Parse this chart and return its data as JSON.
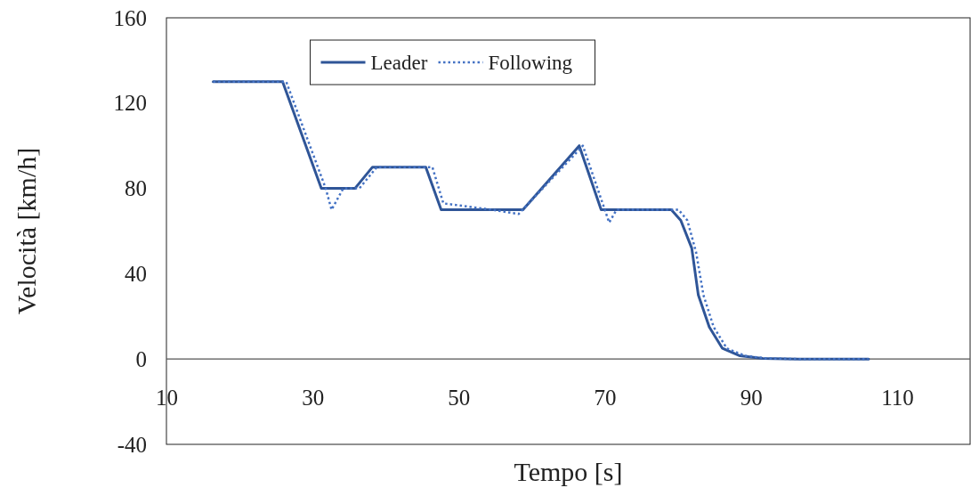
{
  "chart_data": {
    "type": "line",
    "xlabel": "Tempo [s]",
    "ylabel": "Velocità [km/h]",
    "xlim": [
      10,
      120
    ],
    "xticks": [
      10,
      30,
      50,
      70,
      90,
      110
    ],
    "ylim": [
      -40,
      160
    ],
    "yticks": [
      -40,
      0,
      40,
      80,
      120,
      160
    ],
    "grid": false,
    "legend": "top",
    "marker": "none",
    "series": [
      {
        "name": "Leader",
        "color": "#2f5597",
        "line_style": "solid",
        "x": [
          16.4,
          25.9,
          31.2,
          35.8,
          38.2,
          45.5,
          47.6,
          58.8,
          66.5,
          69.5,
          79.1,
          80.4,
          81.9,
          82.8,
          84.3,
          86.1,
          88.5,
          91.6,
          96.4,
          106.1
        ],
        "values": [
          130,
          130,
          80,
          80,
          90,
          90,
          70,
          70,
          100,
          70,
          70,
          65,
          52,
          30,
          15,
          5,
          1.5,
          0.3,
          0,
          0
        ]
      },
      {
        "name": "Following",
        "color": "#4472c4",
        "line_style": "dotted",
        "x": [
          16.4,
          26.4,
          31.8,
          32.6,
          34.2,
          36.4,
          38.8,
          46.4,
          47.9,
          54.6,
          58.2,
          67.0,
          70.6,
          71.6,
          80.1,
          81.3,
          82.5,
          83.5,
          84.9,
          86.7,
          89.2,
          92.2,
          96.9,
          106.1
        ],
        "values": [
          130,
          130,
          80,
          70,
          80,
          80,
          90,
          90,
          73,
          70,
          68,
          100,
          64,
          70,
          70,
          65,
          50,
          30,
          15,
          5,
          1.5,
          0.3,
          0,
          0
        ]
      }
    ]
  }
}
